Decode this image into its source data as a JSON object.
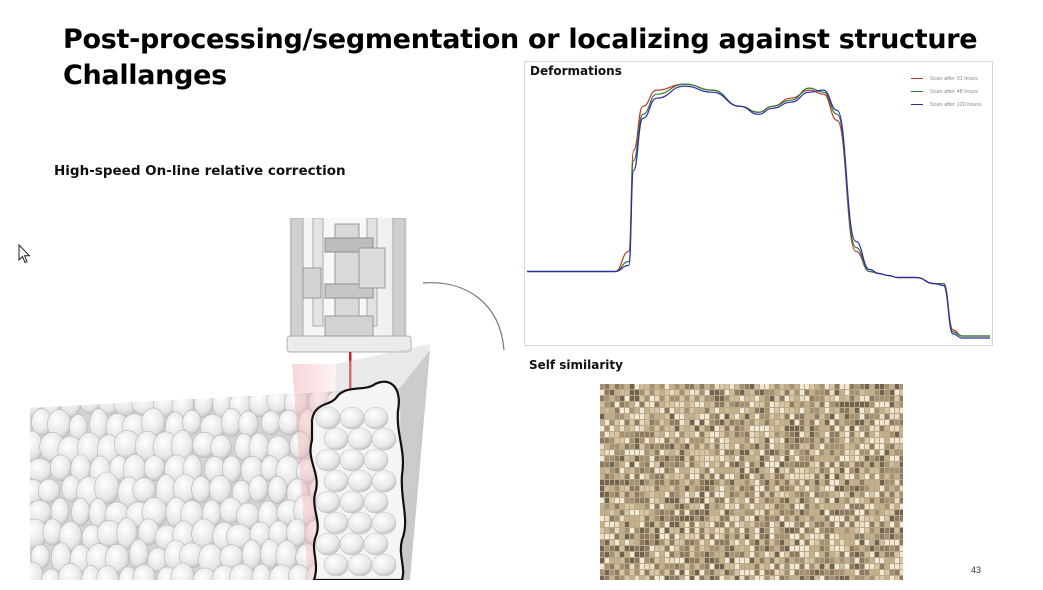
{
  "slide": {
    "title_line1": "Post-processing/segmentation or localizing against structure",
    "title_line2": "Challanges",
    "subtitle": "High-speed On-line relative correction",
    "page_number": "43"
  },
  "deformations": {
    "title": "Deformations",
    "chart_data": {
      "type": "line",
      "title": "Deformations",
      "xlabel": "",
      "ylabel": "",
      "grid": false,
      "legend_position": "top-right",
      "x": [
        0,
        19,
        22,
        23,
        25,
        28,
        34,
        40,
        46,
        50,
        53,
        57,
        61,
        64,
        67,
        71,
        74,
        76,
        78,
        80,
        84,
        88,
        90,
        92,
        94,
        98,
        100
      ],
      "series": [
        {
          "name": "Scan after 01 hours",
          "color": "#c0392b",
          "values": [
            0.0,
            0.0,
            0.1,
            0.6,
            0.82,
            0.9,
            0.93,
            0.9,
            0.82,
            0.79,
            0.82,
            0.86,
            0.9,
            0.88,
            0.75,
            0.1,
            0.0,
            -0.01,
            -0.02,
            -0.03,
            -0.03,
            -0.06,
            -0.06,
            -0.29,
            -0.32,
            -0.32,
            -0.32
          ]
        },
        {
          "name": "Scan after 48 hours",
          "color": "#2e7d32",
          "values": [
            0.0,
            0.0,
            0.05,
            0.55,
            0.78,
            0.88,
            0.93,
            0.9,
            0.82,
            0.79,
            0.82,
            0.85,
            0.91,
            0.89,
            0.78,
            0.12,
            0.0,
            -0.01,
            -0.02,
            -0.03,
            -0.03,
            -0.06,
            -0.06,
            -0.3,
            -0.32,
            -0.32,
            -0.32
          ]
        },
        {
          "name": "Scan after 120 hours",
          "color": "#2c2ca8",
          "values": [
            0.0,
            0.0,
            0.03,
            0.5,
            0.76,
            0.86,
            0.92,
            0.89,
            0.82,
            0.78,
            0.81,
            0.84,
            0.89,
            0.9,
            0.8,
            0.15,
            0.01,
            -0.01,
            -0.02,
            -0.03,
            -0.03,
            -0.06,
            -0.07,
            -0.31,
            -0.33,
            -0.33,
            -0.33
          ]
        }
      ],
      "xlim": [
        0,
        100
      ],
      "ylim": [
        -0.35,
        1.0
      ]
    }
  },
  "self_similarity": {
    "title": "Self similarity"
  },
  "icons": {
    "cursor": "mouse-pointer-icon"
  }
}
